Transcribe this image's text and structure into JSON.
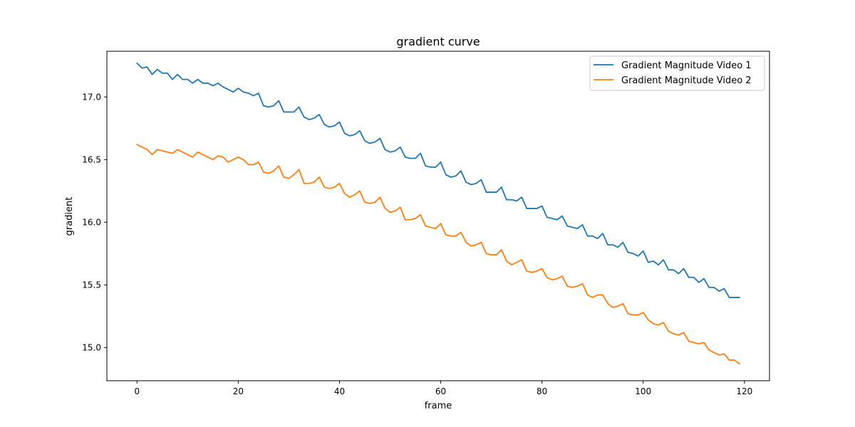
{
  "chart_data": {
    "type": "line",
    "title": "gradient curve",
    "xlabel": "frame",
    "ylabel": "gradient",
    "xlim": [
      -5.95,
      124.95
    ],
    "ylim": [
      14.735,
      17.365
    ],
    "xticks": [
      0,
      20,
      40,
      60,
      80,
      100,
      120
    ],
    "yticks": [
      15.0,
      15.5,
      16.0,
      16.5,
      17.0
    ],
    "xtick_labels": [
      "0",
      "20",
      "40",
      "60",
      "80",
      "100",
      "120"
    ],
    "ytick_labels": [
      "15.0",
      "15.5",
      "16.0",
      "16.5",
      "17.0"
    ],
    "grid": false,
    "legend": "top-right",
    "x": [
      0,
      1,
      2,
      3,
      4,
      5,
      6,
      7,
      8,
      9,
      10,
      11,
      12,
      13,
      14,
      15,
      16,
      17,
      18,
      19,
      20,
      21,
      22,
      23,
      24,
      25,
      26,
      27,
      28,
      29,
      30,
      31,
      32,
      33,
      34,
      35,
      36,
      37,
      38,
      39,
      40,
      41,
      42,
      43,
      44,
      45,
      46,
      47,
      48,
      49,
      50,
      51,
      52,
      53,
      54,
      55,
      56,
      57,
      58,
      59,
      60,
      61,
      62,
      63,
      64,
      65,
      66,
      67,
      68,
      69,
      70,
      71,
      72,
      73,
      74,
      75,
      76,
      77,
      78,
      79,
      80,
      81,
      82,
      83,
      84,
      85,
      86,
      87,
      88,
      89,
      90,
      91,
      92,
      93,
      94,
      95,
      96,
      97,
      98,
      99,
      100,
      101,
      102,
      103,
      104,
      105,
      106,
      107,
      108,
      109,
      110,
      111,
      112,
      113,
      114,
      115,
      116,
      117,
      118,
      119
    ],
    "series": [
      {
        "name": "Gradient Magnitude Video 1",
        "color": "#1f77b4",
        "values": [
          17.27,
          17.23,
          17.24,
          17.18,
          17.22,
          17.19,
          17.19,
          17.14,
          17.18,
          17.14,
          17.14,
          17.11,
          17.14,
          17.11,
          17.11,
          17.09,
          17.11,
          17.08,
          17.06,
          17.04,
          17.07,
          17.04,
          17.03,
          17.01,
          17.03,
          16.93,
          16.92,
          16.93,
          16.97,
          16.88,
          16.88,
          16.88,
          16.92,
          16.84,
          16.82,
          16.83,
          16.86,
          16.78,
          16.76,
          16.77,
          16.8,
          16.71,
          16.69,
          16.7,
          16.73,
          16.65,
          16.63,
          16.64,
          16.67,
          16.58,
          16.56,
          16.57,
          16.6,
          16.52,
          16.51,
          16.51,
          16.55,
          16.45,
          16.44,
          16.44,
          16.48,
          16.38,
          16.36,
          16.37,
          16.41,
          16.32,
          16.3,
          16.31,
          16.34,
          16.24,
          16.24,
          16.24,
          16.28,
          16.18,
          16.18,
          16.17,
          16.2,
          16.11,
          16.11,
          16.11,
          16.13,
          16.04,
          16.03,
          16.02,
          16.05,
          15.97,
          15.96,
          15.95,
          15.98,
          15.89,
          15.89,
          15.87,
          15.91,
          15.82,
          15.82,
          15.8,
          15.84,
          15.76,
          15.75,
          15.73,
          15.77,
          15.68,
          15.69,
          15.66,
          15.7,
          15.62,
          15.62,
          15.59,
          15.63,
          15.56,
          15.56,
          15.52,
          15.55,
          15.48,
          15.48,
          15.45,
          15.47,
          15.4,
          15.4,
          15.4
        ]
      },
      {
        "name": "Gradient Magnitude Video 2",
        "color": "#ff7f0e",
        "values": [
          16.62,
          16.6,
          16.58,
          16.54,
          16.58,
          16.57,
          16.56,
          16.55,
          16.58,
          16.56,
          16.54,
          16.52,
          16.56,
          16.54,
          16.52,
          16.5,
          16.53,
          16.52,
          16.48,
          16.5,
          16.52,
          16.5,
          16.46,
          16.46,
          16.48,
          16.4,
          16.39,
          16.41,
          16.45,
          16.36,
          16.35,
          16.38,
          16.42,
          16.31,
          16.31,
          16.32,
          16.36,
          16.28,
          16.27,
          16.28,
          16.31,
          16.23,
          16.2,
          16.22,
          16.25,
          16.16,
          16.15,
          16.16,
          16.2,
          16.11,
          16.08,
          16.09,
          16.12,
          16.02,
          16.02,
          16.03,
          16.06,
          15.97,
          15.96,
          15.95,
          15.99,
          15.9,
          15.89,
          15.89,
          15.92,
          15.84,
          15.81,
          15.82,
          15.84,
          15.75,
          15.74,
          15.74,
          15.78,
          15.69,
          15.66,
          15.68,
          15.7,
          15.61,
          15.6,
          15.61,
          15.63,
          15.56,
          15.54,
          15.55,
          15.57,
          15.49,
          15.48,
          15.49,
          15.51,
          15.42,
          15.4,
          15.42,
          15.42,
          15.35,
          15.32,
          15.33,
          15.35,
          15.27,
          15.26,
          15.26,
          15.28,
          15.22,
          15.19,
          15.18,
          15.2,
          15.13,
          15.11,
          15.1,
          15.12,
          15.05,
          15.04,
          15.03,
          15.04,
          14.98,
          14.96,
          14.94,
          14.95,
          14.9,
          14.9,
          14.87
        ]
      }
    ]
  }
}
